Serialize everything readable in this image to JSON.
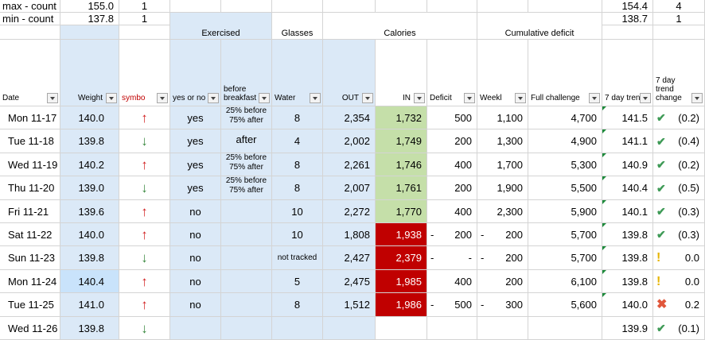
{
  "summary": [
    {
      "label": "max - count",
      "weight": "155.0",
      "symbol": "1",
      "trend": "154.4",
      "trend_change": "4"
    },
    {
      "label": "min - count",
      "weight": "137.8",
      "symbol": "1",
      "trend": "138.7",
      "trend_change": "1"
    }
  ],
  "groups": {
    "exercised": "Exercised",
    "glasses": "Glasses",
    "calories": "Calories",
    "cumulative_deficit": "Cumulative deficit"
  },
  "columns": {
    "date": "Date",
    "weight": "Weight",
    "symbol": "symbo",
    "yes_or_no": "yes or no",
    "before_breakfast": "before breakfast",
    "water": "Water",
    "out": "OUT",
    "in": "IN",
    "deficit": "Deficit",
    "weekly": "Weekl",
    "full_challenge": "Full challenge",
    "seven_day_trend": "7 day tren",
    "seven_day_trend_change": "7 day trend change"
  },
  "rows": [
    {
      "date": "Mon 11-17",
      "weight": "140.0",
      "dir": "up",
      "exercised": "yes",
      "bb": "25% before|75% after",
      "water": "8",
      "out": "2,354",
      "in": "1,732",
      "in_color": "green",
      "deficit": "500",
      "weekly": "1,100",
      "full": "4,700",
      "trend": "141.5",
      "icon": "check",
      "change": "(0.2)"
    },
    {
      "date": "Tue 11-18",
      "weight": "139.8",
      "dir": "down",
      "exercised": "yes",
      "bb": "after",
      "water": "4",
      "out": "2,002",
      "in": "1,749",
      "in_color": "green",
      "deficit": "200",
      "weekly": "1,300",
      "full": "4,900",
      "trend": "141.1",
      "icon": "check",
      "change": "(0.4)"
    },
    {
      "date": "Wed 11-19",
      "weight": "140.2",
      "dir": "up",
      "exercised": "yes",
      "bb": "25% before|75% after",
      "water": "8",
      "out": "2,261",
      "in": "1,746",
      "in_color": "green",
      "deficit": "400",
      "weekly": "1,700",
      "full": "5,300",
      "trend": "140.9",
      "icon": "check",
      "change": "(0.2)"
    },
    {
      "date": "Thu 11-20",
      "weight": "139.0",
      "dir": "down",
      "exercised": "yes",
      "bb": "25% before|75% after",
      "water": "8",
      "out": "2,007",
      "in": "1,761",
      "in_color": "green",
      "deficit": "200",
      "weekly": "1,900",
      "full": "5,500",
      "trend": "140.4",
      "icon": "check",
      "change": "(0.5)"
    },
    {
      "date": "Fri 11-21",
      "weight": "139.6",
      "dir": "up",
      "exercised": "no",
      "bb": "",
      "water": "10",
      "out": "2,272",
      "in": "1,770",
      "in_color": "green",
      "deficit": "400",
      "weekly": "2,300",
      "full": "5,900",
      "trend": "140.1",
      "icon": "check",
      "change": "(0.3)"
    },
    {
      "date": "Sat 11-22",
      "weight": "140.0",
      "dir": "up",
      "exercised": "no",
      "bb": "",
      "water": "10",
      "out": "1,808",
      "in": "1,938",
      "in_color": "red",
      "deficit_dash": "-",
      "deficit": "200",
      "weekly_dash": "-",
      "weekly": "200",
      "full": "5,700",
      "trend": "139.8",
      "icon": "check",
      "change": "(0.3)"
    },
    {
      "date": "Sun 11-23",
      "weight": "139.8",
      "dir": "down",
      "exercised": "no",
      "bb": "",
      "water": "not tracked",
      "out": "2,427",
      "in": "2,379",
      "in_color": "red",
      "deficit_dash": "-",
      "deficit": "-",
      "weekly_dash": "-",
      "weekly": "200",
      "full": "5,700",
      "trend": "139.8",
      "icon": "excl",
      "change": "0.0"
    },
    {
      "date": "Mon 11-24",
      "weight": "140.4",
      "dir": "up",
      "exercised": "no",
      "bb": "",
      "water": "5",
      "out": "2,475",
      "in": "1,985",
      "in_color": "red",
      "deficit": "400",
      "weekly": "200",
      "full": "6,100",
      "trend": "139.8",
      "icon": "excl",
      "change": "0.0"
    },
    {
      "date": "Tue 11-25",
      "weight": "141.0",
      "dir": "up",
      "exercised": "no",
      "bb": "",
      "water": "8",
      "out": "1,512",
      "in": "1,986",
      "in_color": "red",
      "deficit_dash": "-",
      "deficit": "500",
      "weekly_dash": "-",
      "weekly": "300",
      "full": "5,600",
      "trend": "140.0",
      "icon": "x",
      "change": "0.2"
    },
    {
      "date": "Wed 11-26",
      "weight": "139.8",
      "dir": "down",
      "exercised": "",
      "bb": "",
      "water": "",
      "out": "",
      "in": "",
      "in_color": "none",
      "deficit": "",
      "weekly": "",
      "full": "",
      "trend": "139.9",
      "icon": "check",
      "change": "(0.1)"
    }
  ],
  "icons": {
    "up": "↑",
    "down": "↓",
    "check": "✔",
    "excl": "!",
    "x": "✖"
  },
  "colors": {
    "blue_fill": "#dbe9f7",
    "green_fill": "#c5dfa9",
    "red_fill": "#c00000",
    "up_arrow": "#d11f1f",
    "down_arrow": "#3c8a42",
    "symbol_header": "#c00000"
  }
}
